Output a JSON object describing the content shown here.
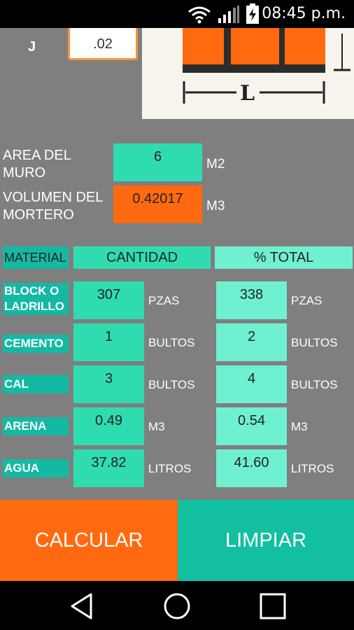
{
  "status_bar": {
    "time": "08:45 p.m."
  },
  "j_field": {
    "label": "J",
    "value": ".02"
  },
  "diagram": {
    "dimension_label": "L"
  },
  "area": {
    "label_line1": "AREA DEL",
    "label_line2": "MURO",
    "value": "6",
    "unit": "M2"
  },
  "volumen": {
    "label_line1": "VOLUMEN DEL",
    "label_line2": "MORTERO",
    "value": "0.42017",
    "unit": "M3"
  },
  "table": {
    "headers": {
      "material": "MATERIAL",
      "cantidad": "CANTIDAD",
      "total": "% TOTAL"
    },
    "rows": [
      {
        "material_line1": "BLOCK O",
        "material_line2": "LADRILLO",
        "cantidad": "307",
        "cantidad_unit": "PZAS",
        "total": "338",
        "total_unit": "PZAS"
      },
      {
        "material_line1": "CEMENTO",
        "material_line2": "",
        "cantidad": "1",
        "cantidad_unit": "BULTOS",
        "total": "2",
        "total_unit": "BULTOS"
      },
      {
        "material_line1": "CAL",
        "material_line2": "",
        "cantidad": "3",
        "cantidad_unit": "BULTOS",
        "total": "4",
        "total_unit": "BULTOS"
      },
      {
        "material_line1": "ARENA",
        "material_line2": "",
        "cantidad": "0.49",
        "cantidad_unit": "M3",
        "total": "0.54",
        "total_unit": "M3"
      },
      {
        "material_line1": "AGUA",
        "material_line2": "",
        "cantidad": "37.82",
        "cantidad_unit": "LITROS",
        "total": "41.60",
        "total_unit": "LITROS"
      }
    ]
  },
  "buttons": {
    "calcular": "CALCULAR",
    "limpiar": "LIMPIAR"
  },
  "navbar": {
    "back": "back-icon",
    "home": "home-icon",
    "recents": "recents-icon"
  }
}
